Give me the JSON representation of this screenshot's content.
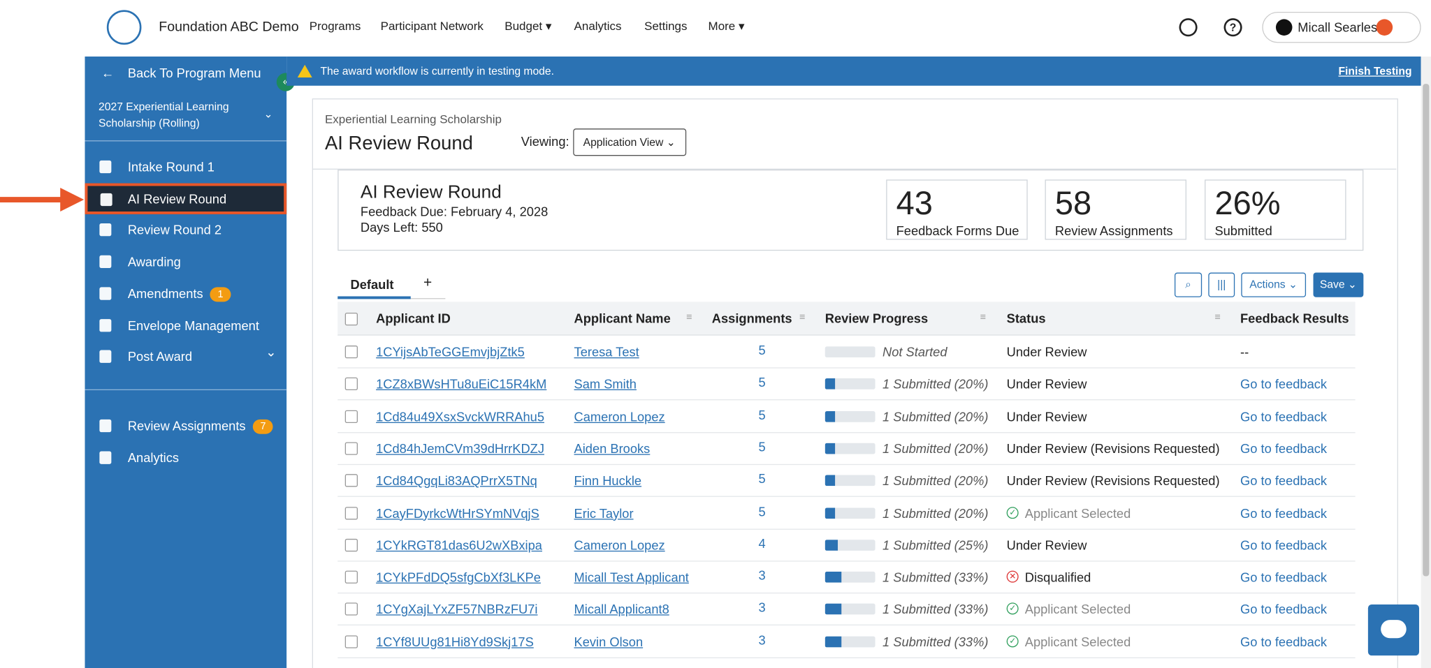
{
  "header": {
    "org": "Foundation ABC Demo",
    "nav": [
      "Programs",
      "Participant Network",
      "Budget ▾",
      "Analytics",
      "Settings",
      "More ▾"
    ],
    "user": "Micall Searles"
  },
  "sidebar": {
    "back": "Back To Program Menu",
    "program": "2027 Experiential Learning Scholarship (Rolling)",
    "items": [
      {
        "label": "Intake Round 1"
      },
      {
        "label": "AI Review Round"
      },
      {
        "label": "Review Round 2"
      },
      {
        "label": "Awarding"
      },
      {
        "label": "Amendments",
        "badge": "1"
      },
      {
        "label": "Envelope Management"
      },
      {
        "label": "Post Award"
      }
    ],
    "bottom": [
      {
        "label": "Review Assignments",
        "badge": "7"
      },
      {
        "label": "Analytics"
      }
    ]
  },
  "banner": {
    "text": "The award workflow is currently in testing mode.",
    "action": "Finish Testing"
  },
  "round": {
    "program": "Experiential Learning Scholarship",
    "title": "AI Review Round",
    "viewing_label": "Viewing:",
    "view": "Application View"
  },
  "summary": {
    "title": "AI Review Round",
    "due": "Feedback Due: February 4, 2028",
    "days_left": "Days Left: 550",
    "stats": [
      {
        "value": "43",
        "label": "Feedback Forms Due"
      },
      {
        "value": "58",
        "label": "Review Assignments"
      },
      {
        "value": "26%",
        "label": "Submitted"
      }
    ]
  },
  "tabs": [
    "Default"
  ],
  "toolbar": {
    "actions": "Actions",
    "save": "Save"
  },
  "table": {
    "columns": [
      "Applicant ID",
      "Applicant Name",
      "Assignments",
      "Review Progress",
      "Status",
      "Feedback Results"
    ],
    "rows": [
      {
        "id": "1CYijsAbTeGGEmvjbjZtk5",
        "name": "Teresa Test",
        "assignments": 5,
        "progress": "Not Started",
        "status": "Under Review",
        "status_icon": null,
        "feedback": "--"
      },
      {
        "id": "1CZ8xBWsHTu8uEiC15R4kM",
        "name": "Sam Smith",
        "assignments": 5,
        "progress": "1 Submitted (20%)",
        "status": "Under Review",
        "status_icon": null,
        "feedback": "Go to feedback"
      },
      {
        "id": "1Cd84u49XsxSvckWRRAhu5",
        "name": "Cameron Lopez",
        "assignments": 5,
        "progress": "1 Submitted (20%)",
        "status": "Under Review",
        "status_icon": null,
        "feedback": "Go to feedback"
      },
      {
        "id": "1Cd84hJemCVm39dHrrKDZJ",
        "name": "Aiden Brooks",
        "assignments": 5,
        "progress": "1 Submitted (20%)",
        "status": "Under Review (Revisions Requested)",
        "status_icon": null,
        "feedback": "Go to feedback"
      },
      {
        "id": "1Cd84QgqLi83AQPrrX5TNq",
        "name": "Finn Huckle",
        "assignments": 5,
        "progress": "1 Submitted (20%)",
        "status": "Under Review (Revisions Requested)",
        "status_icon": null,
        "feedback": "Go to feedback"
      },
      {
        "id": "1CayFDyrkcWtHrSYmNVqjS",
        "name": "Eric Taylor",
        "assignments": 5,
        "progress": "1 Submitted (20%)",
        "status": "Applicant Selected",
        "status_icon": "check",
        "feedback": "Go to feedback"
      },
      {
        "id": "1CYkRGT81das6U2wXBxipa",
        "name": "Cameron Lopez",
        "assignments": 4,
        "progress": "1 Submitted (25%)",
        "status": "Under Review",
        "status_icon": null,
        "feedback": "Go to feedback"
      },
      {
        "id": "1CYkPFdDQ5sfgCbXf3LKPe",
        "name": "Micall Test Applicant",
        "assignments": 3,
        "progress": "1 Submitted (33%)",
        "status": "Disqualified",
        "status_icon": "cross",
        "feedback": "Go to feedback"
      },
      {
        "id": "1CYgXajLYxZF57NBRzFU7i",
        "name": "Micall Applicant8",
        "assignments": 3,
        "progress": "1 Submitted (33%)",
        "status": "Applicant Selected",
        "status_icon": "check",
        "feedback": "Go to feedback"
      },
      {
        "id": "1CYf8UUg81Hi8Yd9Skj17S",
        "name": "Kevin Olson",
        "assignments": 3,
        "progress": "1 Submitted (33%)",
        "status": "Applicant Selected",
        "status_icon": "check",
        "feedback": "Go to feedback"
      }
    ]
  }
}
